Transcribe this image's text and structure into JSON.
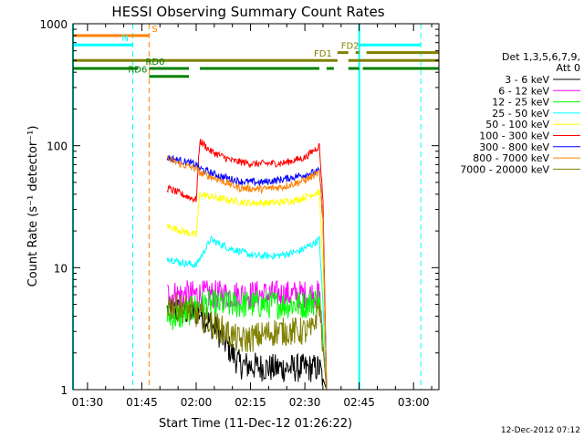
{
  "chart_data": {
    "type": "line",
    "title": "HESSI Observing Summary Count Rates",
    "xlabel": "Start Time (11-Dec-12 01:26:22)",
    "ylabel": "Count Rate (s⁻¹ detector⁻¹)",
    "footer": "12-Dec-2012 07:12",
    "yscale": "log",
    "ylim": [
      1,
      1000
    ],
    "xlim_minutes_after_0126": [
      0,
      101
    ],
    "x_tick_labels": [
      "01:30",
      "01:45",
      "02:00",
      "02:15",
      "02:30",
      "02:45",
      "03:00"
    ],
    "x_tick_minutes": [
      4,
      19,
      34,
      49,
      64,
      79,
      94
    ],
    "y_tick_labels": [
      "1",
      "10",
      "100",
      "1000"
    ],
    "y_tick_values": [
      1,
      10,
      100,
      1000
    ],
    "legend_header": [
      "Det 1,3,5,6,7,9,",
      "Att 0"
    ],
    "series": [
      {
        "name": "3 - 6 keV",
        "color": "#000000",
        "noisy": true,
        "points": [
          [
            26,
            4.5
          ],
          [
            35,
            4.3
          ],
          [
            40,
            3.0
          ],
          [
            46,
            1.6
          ],
          [
            55,
            1.5
          ],
          [
            64,
            1.5
          ],
          [
            68,
            1.5
          ],
          [
            70,
            1.0
          ]
        ]
      },
      {
        "name": "6 - 12 keV",
        "color": "#ff00ff",
        "noisy": true,
        "points": [
          [
            26,
            6.0
          ],
          [
            35,
            6.0
          ],
          [
            40,
            6.0
          ],
          [
            50,
            6.0
          ],
          [
            60,
            6.0
          ],
          [
            68,
            6.0
          ],
          [
            70,
            1.0
          ]
        ]
      },
      {
        "name": "12 - 25 keV",
        "color": "#00ff00",
        "noisy": true,
        "points": [
          [
            26,
            4.0
          ],
          [
            30,
            4.0
          ],
          [
            35,
            5.0
          ],
          [
            45,
            5.0
          ],
          [
            55,
            5.0
          ],
          [
            64,
            5.0
          ],
          [
            68,
            5.5
          ],
          [
            70,
            1.0
          ]
        ]
      },
      {
        "name": "25 - 50 keV",
        "color": "#00ffff",
        "noisy": true,
        "points": [
          [
            26,
            12
          ],
          [
            30,
            11
          ],
          [
            34,
            10.5
          ],
          [
            38,
            17
          ],
          [
            43,
            14.5
          ],
          [
            50,
            12.5
          ],
          [
            56,
            12.5
          ],
          [
            62,
            13.5
          ],
          [
            66,
            15.5
          ],
          [
            68,
            17
          ],
          [
            69,
            5
          ],
          [
            70,
            1.0
          ]
        ]
      },
      {
        "name": "50 - 100 keV",
        "color": "#ffff00",
        "noisy": true,
        "points": [
          [
            26,
            22
          ],
          [
            30,
            20
          ],
          [
            34,
            18.5
          ],
          [
            35,
            40
          ],
          [
            40,
            37
          ],
          [
            48,
            34
          ],
          [
            56,
            34
          ],
          [
            62,
            36
          ],
          [
            66,
            40
          ],
          [
            68,
            42
          ],
          [
            69,
            10
          ],
          [
            70,
            1.0
          ]
        ]
      },
      {
        "name": "100 - 300 keV",
        "color": "#ff0000",
        "noisy": true,
        "points": [
          [
            26,
            45
          ],
          [
            30,
            40
          ],
          [
            34,
            36
          ],
          [
            35,
            110
          ],
          [
            38,
            90
          ],
          [
            44,
            75
          ],
          [
            50,
            71
          ],
          [
            58,
            72
          ],
          [
            64,
            80
          ],
          [
            68,
            100
          ],
          [
            69,
            35
          ],
          [
            70,
            1.0
          ]
        ]
      },
      {
        "name": "300 - 800 keV",
        "color": "#0000ff",
        "noisy": true,
        "points": [
          [
            26,
            80
          ],
          [
            30,
            75
          ],
          [
            34,
            70
          ],
          [
            35,
            65
          ],
          [
            40,
            57
          ],
          [
            46,
            51
          ],
          [
            52,
            50
          ],
          [
            58,
            53
          ],
          [
            64,
            58
          ],
          [
            68,
            62
          ],
          [
            69,
            25
          ],
          [
            70,
            1.0
          ]
        ]
      },
      {
        "name": "800 - 7000 keV",
        "color": "#ff8000",
        "noisy": true,
        "points": [
          [
            26,
            78
          ],
          [
            30,
            70
          ],
          [
            34,
            65
          ],
          [
            35,
            60
          ],
          [
            40,
            53
          ],
          [
            46,
            45
          ],
          [
            52,
            44
          ],
          [
            58,
            46
          ],
          [
            64,
            52
          ],
          [
            68,
            60
          ],
          [
            69,
            25
          ],
          [
            70,
            1.0
          ]
        ]
      },
      {
        "name": "7000 - 20000 keV",
        "color": "#808000",
        "noisy": true,
        "points": [
          [
            26,
            5.0
          ],
          [
            32,
            4.5
          ],
          [
            35,
            4.0
          ],
          [
            38,
            3.5
          ],
          [
            42,
            3.0
          ],
          [
            46,
            2.5
          ],
          [
            56,
            3.0
          ],
          [
            62,
            3.0
          ],
          [
            66,
            3.0
          ],
          [
            68,
            5.0
          ],
          [
            70,
            1.0
          ]
        ]
      }
    ],
    "flag_bars": [
      {
        "label": "S",
        "color": "#ff8000",
        "value": 800,
        "segments": [
          [
            0,
            21
          ]
        ]
      },
      {
        "label": "N",
        "color": "#00ffff",
        "value": 670,
        "segments": [
          [
            0,
            16.5
          ],
          [
            79,
            96
          ]
        ]
      },
      {
        "label": "FD1",
        "color": "#808000",
        "value": 500,
        "segments": [
          [
            0,
            73
          ],
          [
            76,
            101
          ]
        ]
      },
      {
        "label": "FD2",
        "color": "#808000",
        "value": 580,
        "segments": [
          [
            73,
            76
          ],
          [
            78,
            79
          ],
          [
            81,
            101
          ]
        ]
      },
      {
        "label": "RD0",
        "color": "#008000",
        "value": 430,
        "segments": [
          [
            0,
            18
          ],
          [
            21,
            32
          ],
          [
            35,
            68
          ],
          [
            70,
            72
          ],
          [
            76,
            79
          ],
          [
            80,
            101
          ]
        ]
      },
      {
        "label": "RD6",
        "color": "#008000",
        "value": 370,
        "segments": [
          [
            21,
            32
          ]
        ]
      }
    ],
    "vertical_markers": [
      {
        "minute": 16.5,
        "color": "#00ffff",
        "style": "dashed"
      },
      {
        "minute": 21,
        "color": "#ff8000",
        "style": "dashed"
      },
      {
        "minute": 96,
        "color": "#00ffff",
        "style": "dashed"
      },
      {
        "minute": 0,
        "color": "#00ffff",
        "style": "solid"
      },
      {
        "minute": 79,
        "color": "#00ffff",
        "style": "solid"
      }
    ]
  }
}
